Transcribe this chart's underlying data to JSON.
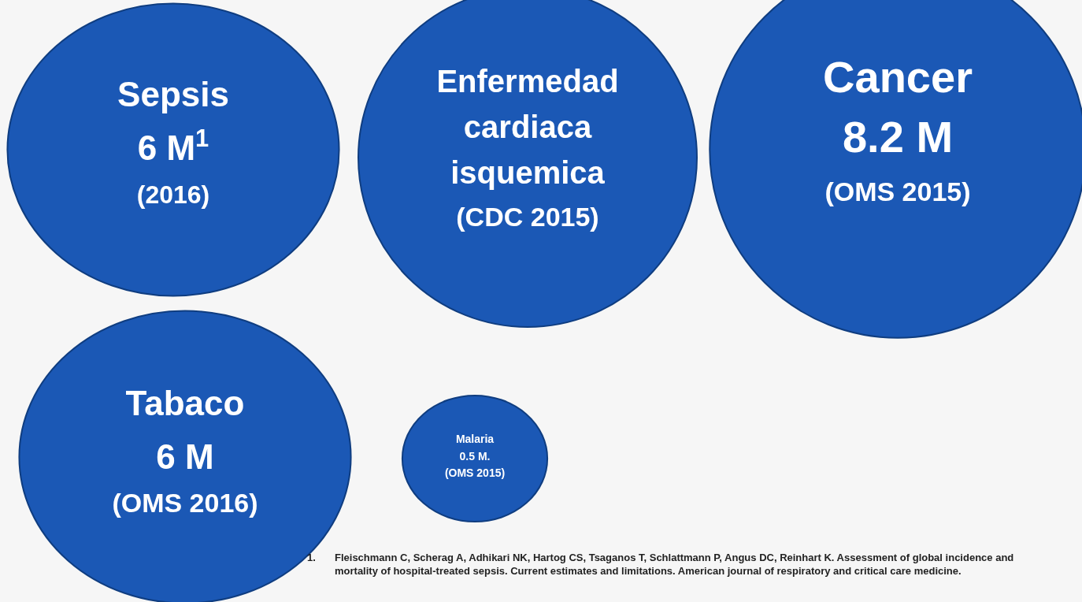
{
  "chart_data": {
    "type": "other",
    "categories": [
      "Sepsis",
      "Enfermedad cardiaca isquemica",
      "Cancer",
      "Tabaco",
      "Malaria"
    ],
    "values": [
      6,
      null,
      8.2,
      6,
      0.5
    ],
    "value_labels": [
      "6 M$^{1}$",
      null,
      "8.2 M",
      "6 M",
      "0.5 M."
    ],
    "colors": [
      "#1b58b5",
      "#1b58b5",
      "#1b58b5",
      "#1b58b5",
      "#1b58b5"
    ],
    "annotations": [
      "(2016)",
      "(CDC 2015)",
      "(OMS 2015)",
      "(OMS 2016)",
      "(OMS 2015)",
      "1.\tFleischmann C, Scherag A, Adhikari NK, Hartog CS, Tsaganos T, Schlattmann P, Angus DC, Reinhart K. Assessment of global incidence and mortality of hospital-treated sepsis. Current estimates and limitations. American journal of respiratory and critical care medicine."
    ]
  }
}
